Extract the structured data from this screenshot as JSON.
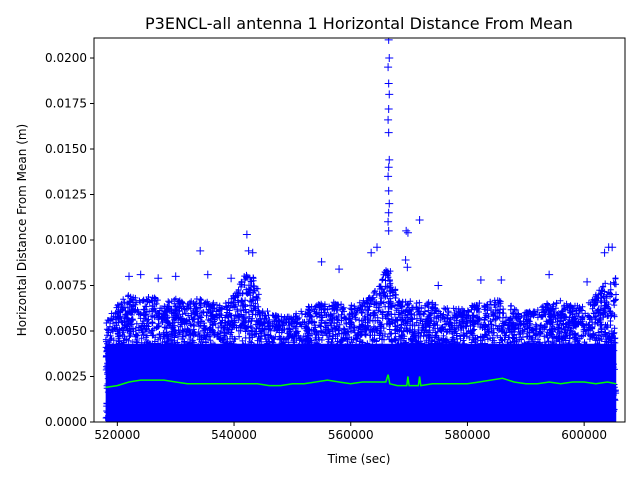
{
  "chart_data": {
    "type": "scatter",
    "title": "P3ENCL-all antenna 1 Horizontal Distance From Mean",
    "xlabel": "Time (sec)",
    "ylabel": "Horizontal Distance From Mean (m)",
    "xlim": [
      516000,
      607000
    ],
    "ylim": [
      0,
      0.0211
    ],
    "x_ticks": [
      520000,
      540000,
      560000,
      580000,
      600000
    ],
    "x_tick_labels": [
      "520000",
      "540000",
      "560000",
      "580000",
      "600000"
    ],
    "y_ticks": [
      0.0,
      0.0025,
      0.005,
      0.0075,
      0.01,
      0.0125,
      0.015,
      0.0175,
      0.02
    ],
    "y_tick_labels": [
      "0.0000",
      "0.0025",
      "0.0050",
      "0.0075",
      "0.0100",
      "0.0125",
      "0.0150",
      "0.0175",
      "0.0200"
    ],
    "grid": false,
    "series": [
      {
        "marker": "plus",
        "color": "#0000ff",
        "x_range": [
          518000,
          605500
        ],
        "points": [
          {
            "x": 522000,
            "y": 0.008
          },
          {
            "x": 524000,
            "y": 0.0081
          },
          {
            "x": 527000,
            "y": 0.0079
          },
          {
            "x": 530000,
            "y": 0.008
          },
          {
            "x": 534200,
            "y": 0.0094
          },
          {
            "x": 535500,
            "y": 0.0081
          },
          {
            "x": 539500,
            "y": 0.0079
          },
          {
            "x": 542200,
            "y": 0.0103
          },
          {
            "x": 542500,
            "y": 0.0094
          },
          {
            "x": 543200,
            "y": 0.0093
          },
          {
            "x": 555000,
            "y": 0.0088
          },
          {
            "x": 558000,
            "y": 0.0084
          },
          {
            "x": 563500,
            "y": 0.0093
          },
          {
            "x": 564500,
            "y": 0.0096
          },
          {
            "x": 566500,
            "y": 0.021
          },
          {
            "x": 566600,
            "y": 0.02
          },
          {
            "x": 566400,
            "y": 0.0195
          },
          {
            "x": 566500,
            "y": 0.0186
          },
          {
            "x": 566600,
            "y": 0.018
          },
          {
            "x": 566500,
            "y": 0.0172
          },
          {
            "x": 566400,
            "y": 0.0166
          },
          {
            "x": 566500,
            "y": 0.0159
          },
          {
            "x": 566600,
            "y": 0.0144
          },
          {
            "x": 566500,
            "y": 0.014
          },
          {
            "x": 566400,
            "y": 0.0135
          },
          {
            "x": 566500,
            "y": 0.0127
          },
          {
            "x": 566600,
            "y": 0.012
          },
          {
            "x": 566500,
            "y": 0.0115
          },
          {
            "x": 566400,
            "y": 0.011
          },
          {
            "x": 566500,
            "y": 0.0105
          },
          {
            "x": 569500,
            "y": 0.0105
          },
          {
            "x": 569800,
            "y": 0.0104
          },
          {
            "x": 569400,
            "y": 0.0089
          },
          {
            "x": 569700,
            "y": 0.0085
          },
          {
            "x": 571800,
            "y": 0.0111
          },
          {
            "x": 575000,
            "y": 0.0075
          },
          {
            "x": 582300,
            "y": 0.0078
          },
          {
            "x": 585800,
            "y": 0.0078
          },
          {
            "x": 594000,
            "y": 0.0081
          },
          {
            "x": 600500,
            "y": 0.0077
          },
          {
            "x": 603500,
            "y": 0.0093
          },
          {
            "x": 604200,
            "y": 0.0096
          },
          {
            "x": 604800,
            "y": 0.0096
          }
        ],
        "upper_envelope": [
          {
            "x": 518000,
            "y": 0.0055
          },
          {
            "x": 520000,
            "y": 0.0065
          },
          {
            "x": 522000,
            "y": 0.007
          },
          {
            "x": 524000,
            "y": 0.0068
          },
          {
            "x": 526000,
            "y": 0.007
          },
          {
            "x": 528000,
            "y": 0.0066
          },
          {
            "x": 530000,
            "y": 0.0068
          },
          {
            "x": 532000,
            "y": 0.0066
          },
          {
            "x": 534000,
            "y": 0.0068
          },
          {
            "x": 536000,
            "y": 0.0066
          },
          {
            "x": 538000,
            "y": 0.0064
          },
          {
            "x": 540000,
            "y": 0.007
          },
          {
            "x": 542000,
            "y": 0.0082
          },
          {
            "x": 543500,
            "y": 0.008
          },
          {
            "x": 545000,
            "y": 0.0062
          },
          {
            "x": 548000,
            "y": 0.0058
          },
          {
            "x": 551000,
            "y": 0.006
          },
          {
            "x": 554000,
            "y": 0.0066
          },
          {
            "x": 557000,
            "y": 0.0066
          },
          {
            "x": 560000,
            "y": 0.0064
          },
          {
            "x": 563000,
            "y": 0.0068
          },
          {
            "x": 565000,
            "y": 0.0075
          },
          {
            "x": 566500,
            "y": 0.009
          },
          {
            "x": 568000,
            "y": 0.0068
          },
          {
            "x": 571000,
            "y": 0.0066
          },
          {
            "x": 574000,
            "y": 0.0066
          },
          {
            "x": 577000,
            "y": 0.0062
          },
          {
            "x": 580000,
            "y": 0.0064
          },
          {
            "x": 583000,
            "y": 0.0066
          },
          {
            "x": 586000,
            "y": 0.0068
          },
          {
            "x": 589000,
            "y": 0.006
          },
          {
            "x": 592000,
            "y": 0.0062
          },
          {
            "x": 595000,
            "y": 0.0068
          },
          {
            "x": 598000,
            "y": 0.0064
          },
          {
            "x": 601000,
            "y": 0.0066
          },
          {
            "x": 603000,
            "y": 0.0075
          },
          {
            "x": 605500,
            "y": 0.008
          }
        ]
      },
      {
        "marker": "line",
        "color": "#00ff00",
        "points": [
          {
            "x": 518000,
            "y": 0.0019
          },
          {
            "x": 520000,
            "y": 0.002
          },
          {
            "x": 522000,
            "y": 0.0022
          },
          {
            "x": 524000,
            "y": 0.0023
          },
          {
            "x": 526000,
            "y": 0.0023
          },
          {
            "x": 528000,
            "y": 0.0023
          },
          {
            "x": 530000,
            "y": 0.0022
          },
          {
            "x": 532000,
            "y": 0.0021
          },
          {
            "x": 534000,
            "y": 0.0021
          },
          {
            "x": 536000,
            "y": 0.0021
          },
          {
            "x": 538000,
            "y": 0.0021
          },
          {
            "x": 540000,
            "y": 0.0021
          },
          {
            "x": 542000,
            "y": 0.0021
          },
          {
            "x": 544000,
            "y": 0.0021
          },
          {
            "x": 546000,
            "y": 0.002
          },
          {
            "x": 548000,
            "y": 0.002
          },
          {
            "x": 550000,
            "y": 0.0021
          },
          {
            "x": 552000,
            "y": 0.0021
          },
          {
            "x": 554000,
            "y": 0.0022
          },
          {
            "x": 556000,
            "y": 0.0023
          },
          {
            "x": 558000,
            "y": 0.0022
          },
          {
            "x": 560000,
            "y": 0.0021
          },
          {
            "x": 562000,
            "y": 0.0022
          },
          {
            "x": 564000,
            "y": 0.0022
          },
          {
            "x": 566000,
            "y": 0.0022
          },
          {
            "x": 566400,
            "y": 0.0026
          },
          {
            "x": 566700,
            "y": 0.0021
          },
          {
            "x": 568000,
            "y": 0.002
          },
          {
            "x": 569600,
            "y": 0.002
          },
          {
            "x": 569800,
            "y": 0.0025
          },
          {
            "x": 570000,
            "y": 0.002
          },
          {
            "x": 571600,
            "y": 0.002
          },
          {
            "x": 571800,
            "y": 0.0025
          },
          {
            "x": 572000,
            "y": 0.002
          },
          {
            "x": 574000,
            "y": 0.0021
          },
          {
            "x": 576000,
            "y": 0.0021
          },
          {
            "x": 578000,
            "y": 0.0021
          },
          {
            "x": 580000,
            "y": 0.0021
          },
          {
            "x": 582000,
            "y": 0.0022
          },
          {
            "x": 584000,
            "y": 0.0023
          },
          {
            "x": 586000,
            "y": 0.0024
          },
          {
            "x": 588000,
            "y": 0.0022
          },
          {
            "x": 590000,
            "y": 0.0021
          },
          {
            "x": 592000,
            "y": 0.0021
          },
          {
            "x": 594000,
            "y": 0.0022
          },
          {
            "x": 596000,
            "y": 0.0021
          },
          {
            "x": 598000,
            "y": 0.0022
          },
          {
            "x": 600000,
            "y": 0.0022
          },
          {
            "x": 602000,
            "y": 0.0021
          },
          {
            "x": 604000,
            "y": 0.0022
          },
          {
            "x": 605500,
            "y": 0.0021
          }
        ]
      }
    ]
  }
}
